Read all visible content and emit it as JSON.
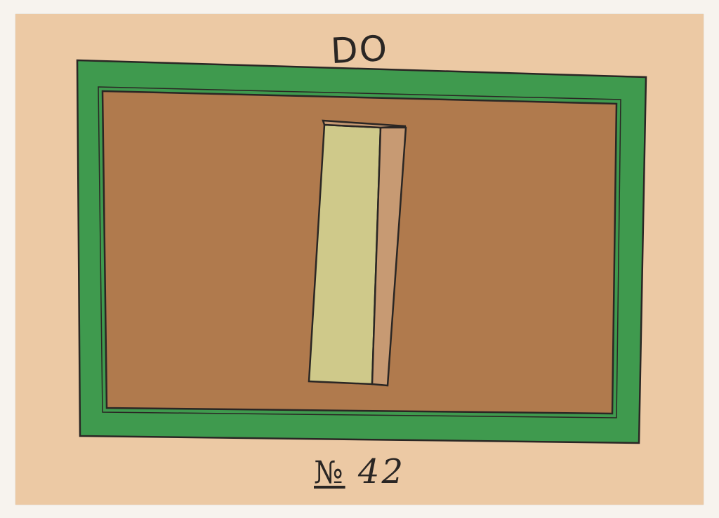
{
  "card": {
    "title": "DO",
    "number_prefix": "№",
    "number_value": "42"
  },
  "colors": {
    "paper": "#ecc9a4",
    "frame_green": "#3f9a4e",
    "field_brown": "#b07a4d",
    "bar_yellow": "#cfc98a",
    "ink": "#2a2624"
  }
}
